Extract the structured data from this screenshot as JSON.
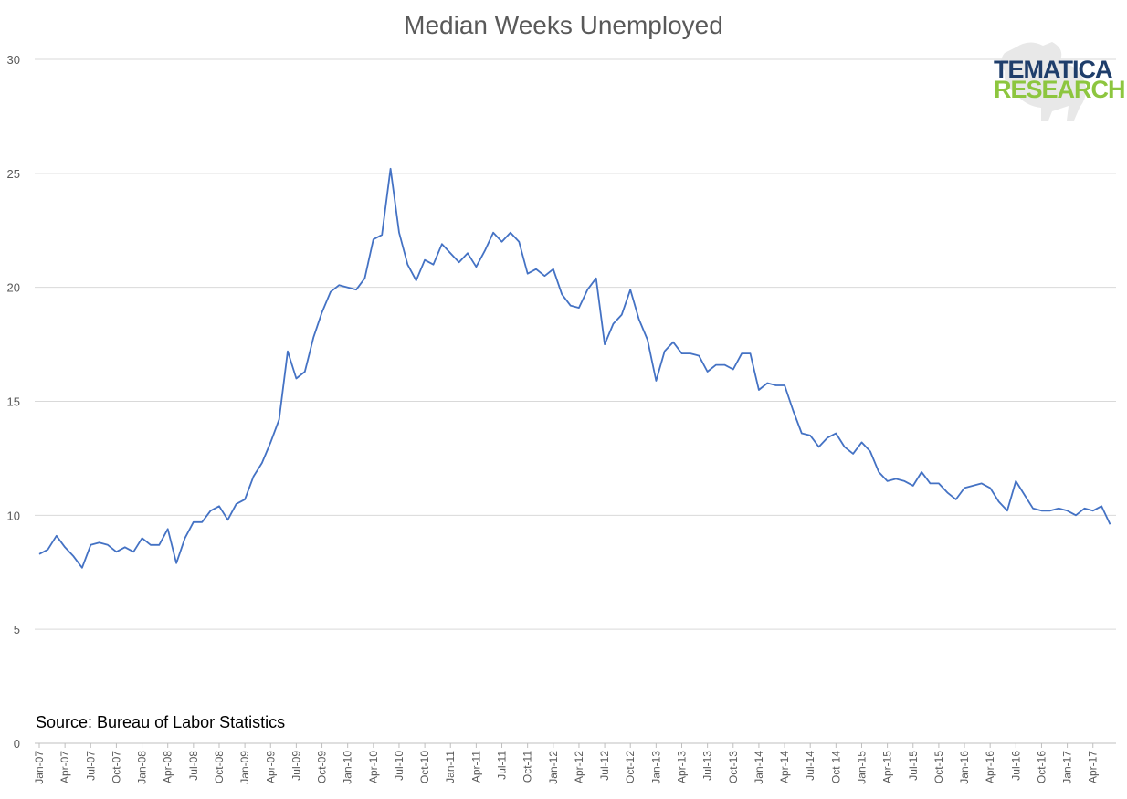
{
  "logo": {
    "line1": "TEMATICA",
    "line2": "RESEARCH"
  },
  "colors": {
    "line": "#4472c4",
    "grid": "#d9d9d9",
    "text": "#595959"
  },
  "source": "Source: Bureau of Labor Statistics",
  "chart_data": {
    "type": "line",
    "title": "Median Weeks Unemployed",
    "xlabel": "",
    "ylabel": "",
    "ylim": [
      0,
      30
    ],
    "yticks": [
      0,
      5,
      10,
      15,
      20,
      25,
      30
    ],
    "grid": true,
    "legend": "none",
    "x_tick_labels": [
      "Jan-07",
      "Apr-07",
      "Jul-07",
      "Oct-07",
      "Jan-08",
      "Apr-08",
      "Jul-08",
      "Oct-08",
      "Jan-09",
      "Apr-09",
      "Jul-09",
      "Oct-09",
      "Jan-10",
      "Apr-10",
      "Jul-10",
      "Oct-10",
      "Jan-11",
      "Apr-11",
      "Jul-11",
      "Oct-11",
      "Jan-12",
      "Apr-12",
      "Jul-12",
      "Oct-12",
      "Jan-13",
      "Apr-13",
      "Jul-13",
      "Oct-13",
      "Jan-14",
      "Apr-14",
      "Jul-14",
      "Oct-14",
      "Jan-15",
      "Apr-15",
      "Jul-15",
      "Oct-15",
      "Jan-16",
      "Apr-16",
      "Jul-16",
      "Oct-16",
      "Jan-17",
      "Apr-17"
    ],
    "x_start": "Jan-07",
    "frequency": "monthly",
    "series": [
      {
        "values": [
          8.3,
          8.5,
          9.1,
          8.6,
          8.2,
          7.7,
          8.7,
          8.8,
          8.7,
          8.4,
          8.6,
          8.4,
          9.0,
          8.7,
          8.7,
          9.4,
          7.9,
          9.0,
          9.7,
          9.7,
          10.2,
          10.4,
          9.8,
          10.5,
          10.7,
          11.7,
          12.3,
          13.2,
          14.2,
          17.2,
          16.0,
          16.3,
          17.8,
          18.9,
          19.8,
          20.1,
          20.0,
          19.9,
          20.4,
          22.1,
          22.3,
          25.2,
          22.4,
          21.0,
          20.3,
          21.2,
          21.0,
          21.9,
          21.5,
          21.1,
          21.5,
          20.9,
          21.6,
          22.4,
          22.0,
          22.4,
          22.0,
          20.6,
          20.8,
          20.5,
          20.8,
          19.7,
          19.2,
          19.1,
          19.9,
          20.4,
          17.5,
          18.4,
          18.8,
          19.9,
          18.6,
          17.7,
          15.9,
          17.2,
          17.6,
          17.1,
          17.1,
          17.0,
          16.3,
          16.6,
          16.6,
          16.4,
          17.1,
          17.1,
          15.5,
          15.8,
          15.7,
          15.7,
          14.6,
          13.6,
          13.5,
          13.0,
          13.4,
          13.6,
          13.0,
          12.7,
          13.2,
          12.8,
          11.9,
          11.5,
          11.6,
          11.5,
          11.3,
          11.9,
          11.4,
          11.4,
          11.0,
          10.7,
          11.2,
          11.3,
          11.4,
          11.2,
          10.6,
          10.2,
          11.5,
          10.9,
          10.3,
          10.2,
          10.2,
          10.3,
          10.2,
          10.0,
          10.3,
          10.2,
          10.4,
          9.6
        ]
      }
    ]
  }
}
